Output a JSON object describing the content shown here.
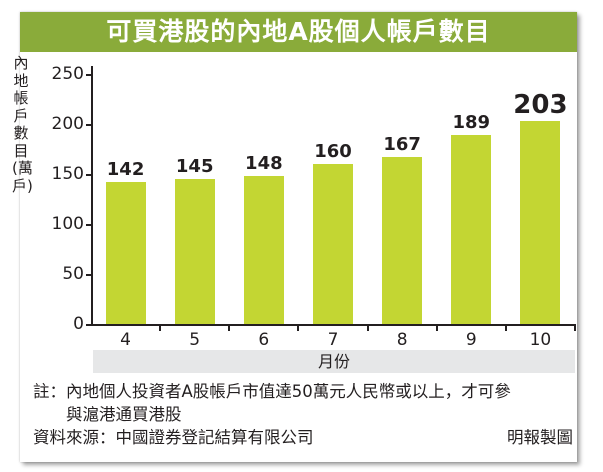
{
  "header": {
    "title": "可買港股的內地A股個人帳戶數目"
  },
  "colors": {
    "title_bg": "#8aab3a",
    "bar": "#c3d633",
    "xband_bg": "#e6e7e8",
    "text": "#231f20"
  },
  "chart_data": {
    "type": "bar",
    "title": "可買港股的內地A股個人帳戶數目",
    "xlabel": "月份",
    "ylabel": "內地帳戶數目(萬戶)",
    "categories": [
      "4",
      "5",
      "6",
      "7",
      "8",
      "9",
      "10"
    ],
    "values": [
      142,
      145,
      148,
      160,
      167,
      189,
      203
    ],
    "data_labels": [
      "142",
      "145",
      "148",
      "160",
      "167",
      "189",
      "203"
    ],
    "ylim": [
      0,
      250
    ],
    "yticks": [
      0,
      50,
      100,
      150,
      200,
      250
    ],
    "ytick_labels": [
      "0",
      "50",
      "100",
      "150",
      "200",
      "250"
    ],
    "grid": false,
    "legend": null,
    "highlight": {
      "index": 6,
      "note": "last value label shown larger"
    }
  },
  "footer": {
    "note_line1": "註：內地個人投資者A股帳戶市值達50萬元人民幣或以上，才可參",
    "note_line2": "與滬港通買港股",
    "source": "資料來源：中國證券登記結算有限公司",
    "credit": "明報製圖"
  }
}
